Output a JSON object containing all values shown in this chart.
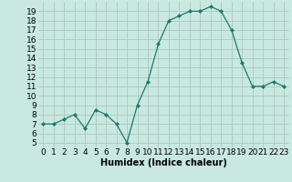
{
  "x": [
    0,
    1,
    2,
    3,
    4,
    5,
    6,
    7,
    8,
    9,
    10,
    11,
    12,
    13,
    14,
    15,
    16,
    17,
    18,
    19,
    20,
    21,
    22,
    23
  ],
  "y": [
    7,
    7,
    7.5,
    8,
    6.5,
    8.5,
    8,
    7,
    5,
    9,
    11.5,
    15.5,
    18,
    18.5,
    19,
    19,
    19.5,
    19,
    17,
    13.5,
    11,
    11,
    11.5,
    11
  ],
  "line_color": "#1a7a6e",
  "marker": "D",
  "marker_size": 2.0,
  "background_color": "#c8e8e0",
  "grid_color": "#b0c8c0",
  "xlabel": "Humidex (Indice chaleur)",
  "xlabel_fontsize": 7,
  "yticks": [
    5,
    6,
    7,
    8,
    9,
    10,
    11,
    12,
    13,
    14,
    15,
    16,
    17,
    18,
    19
  ],
  "ylim": [
    4.5,
    20.0
  ],
  "xlim": [
    -0.5,
    23.5
  ],
  "xticks": [
    0,
    1,
    2,
    3,
    4,
    5,
    6,
    7,
    8,
    9,
    10,
    11,
    12,
    13,
    14,
    15,
    16,
    17,
    18,
    19,
    20,
    21,
    22,
    23
  ],
  "tick_fontsize": 6.5
}
